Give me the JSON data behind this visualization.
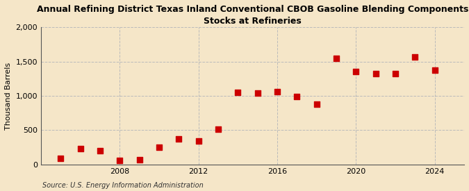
{
  "title": "Annual Refining District Texas Inland Conventional CBOB Gasoline Blending Components\nStocks at Refineries",
  "ylabel": "Thousand Barrels",
  "source": "Source: U.S. Energy Information Administration",
  "background_color": "#f5e6c8",
  "years": [
    2005,
    2006,
    2007,
    2008,
    2009,
    2010,
    2011,
    2012,
    2013,
    2014,
    2015,
    2016,
    2017,
    2018,
    2019,
    2020,
    2021,
    2022,
    2023,
    2024
  ],
  "values": [
    90,
    230,
    195,
    55,
    65,
    255,
    375,
    345,
    510,
    1050,
    1045,
    1065,
    995,
    880,
    1550,
    1360,
    1330,
    1330,
    1570,
    1375
  ],
  "marker_color": "#cc0000",
  "marker_size": 36,
  "ylim": [
    0,
    2000
  ],
  "yticks": [
    0,
    500,
    1000,
    1500,
    2000
  ],
  "ytick_labels": [
    "0",
    "500",
    "1,000",
    "1,500",
    "2,000"
  ],
  "xlim": [
    2004.0,
    2025.5
  ],
  "xticks": [
    2008,
    2012,
    2016,
    2020,
    2024
  ],
  "grid_color": "#bbbbbb",
  "grid_style": "--",
  "title_fontsize": 9,
  "label_fontsize": 8,
  "tick_fontsize": 8,
  "source_fontsize": 7
}
